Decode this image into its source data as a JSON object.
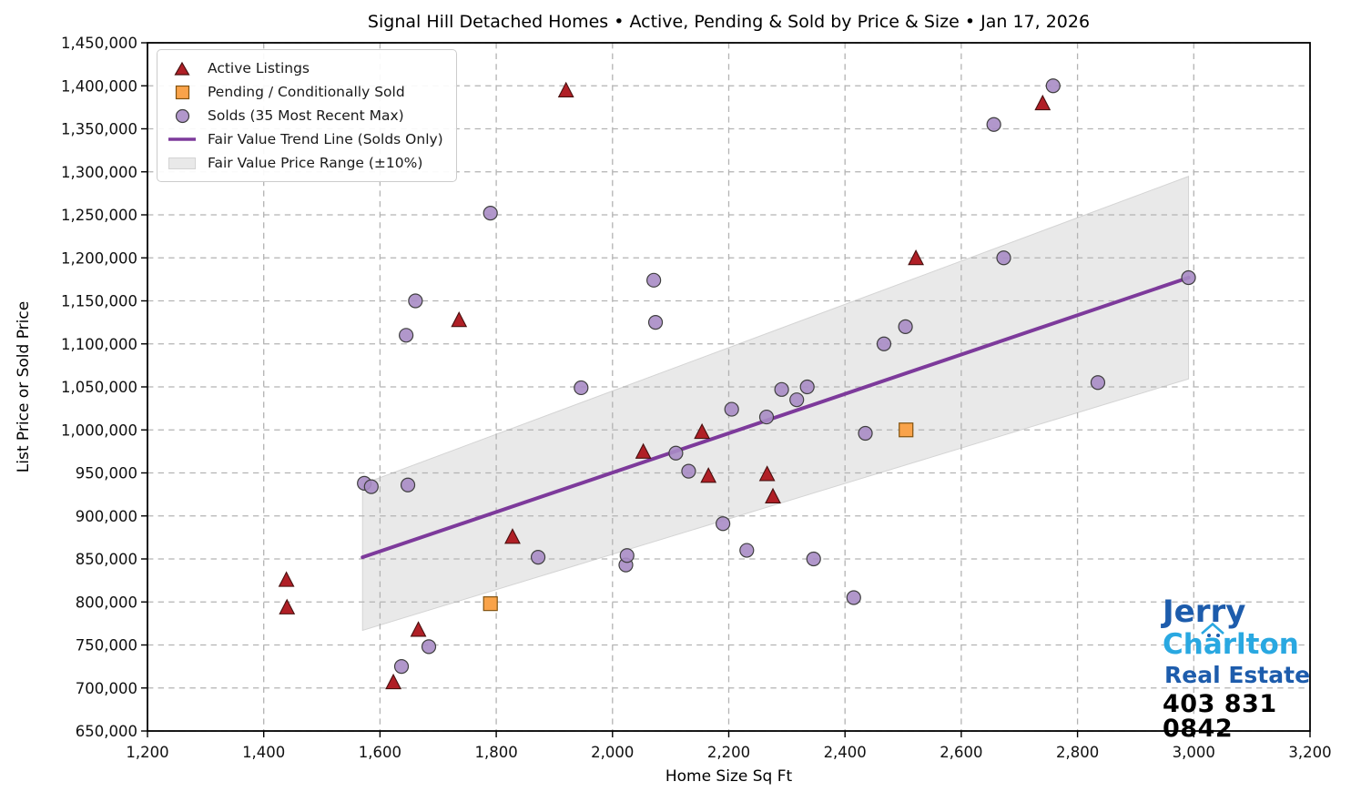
{
  "chart_data": {
    "type": "scatter",
    "title": "Signal Hill Detached Homes • Active, Pending & Sold by Price & Size • Jan 17, 2026",
    "xlabel": "Home Size Sq Ft",
    "ylabel": "List Price or Sold Price",
    "xlim": [
      1200,
      3200
    ],
    "ylim": [
      650000,
      1450000
    ],
    "grid": true,
    "legend_position": "upper left",
    "x_tick_values": [
      1200,
      1400,
      1600,
      1800,
      2000,
      2200,
      2400,
      2600,
      2800,
      3000,
      3200
    ],
    "x_tick_labels": [
      "1,200",
      "1,400",
      "1,600",
      "1,800",
      "2,000",
      "2,200",
      "2,400",
      "2,600",
      "2,800",
      "3,000",
      "3,200"
    ],
    "y_tick_values": [
      650000,
      700000,
      750000,
      800000,
      850000,
      900000,
      950000,
      1000000,
      1050000,
      1100000,
      1150000,
      1200000,
      1250000,
      1300000,
      1350000,
      1400000,
      1450000
    ],
    "y_tick_labels": [
      "650,000",
      "700,000",
      "750,000",
      "800,000",
      "850,000",
      "900,000",
      "950,000",
      "1,000,000",
      "1,050,000",
      "1,100,000",
      "1,150,000",
      "1,200,000",
      "1,250,000",
      "1,300,000",
      "1,350,000",
      "1,400,000",
      "1,450,000"
    ],
    "series": [
      {
        "name": "Active Listings",
        "marker": "triangle",
        "color": "#b01f26",
        "edge": "#47100f",
        "points": [
          [
            1439,
            825000
          ],
          [
            1440,
            793000
          ],
          [
            1623,
            706000
          ],
          [
            1666,
            767000
          ],
          [
            1736,
            1127000
          ],
          [
            1828,
            875000
          ],
          [
            1920,
            1394000
          ],
          [
            2053,
            974000
          ],
          [
            2154,
            997000
          ],
          [
            2165,
            946000
          ],
          [
            2266,
            948000
          ],
          [
            2276,
            922000
          ],
          [
            2522,
            1199000
          ],
          [
            2740,
            1379000
          ]
        ]
      },
      {
        "name": "Pending / Conditionally Sold",
        "marker": "square",
        "color": "#f9a34a",
        "edge": "#80520f",
        "points": [
          [
            1790,
            798000
          ],
          [
            2505,
            1000000
          ]
        ]
      },
      {
        "name": "Solds (35 Most Recent Max)",
        "marker": "circle",
        "color": "#a88cc5",
        "edge": "#3f3f3f",
        "points": [
          [
            1573,
            938000
          ],
          [
            1585,
            934000
          ],
          [
            1637,
            725000
          ],
          [
            1645,
            1110000
          ],
          [
            1648,
            936000
          ],
          [
            1661,
            1150000
          ],
          [
            1684,
            748000
          ],
          [
            1790,
            1252000
          ],
          [
            1872,
            852000
          ],
          [
            1946,
            1049000
          ],
          [
            2023,
            843000
          ],
          [
            2025,
            854000
          ],
          [
            2071,
            1174000
          ],
          [
            2074,
            1125000
          ],
          [
            2109,
            973000
          ],
          [
            2131,
            952000
          ],
          [
            2190,
            891000
          ],
          [
            2205,
            1024000
          ],
          [
            2231,
            860000
          ],
          [
            2265,
            1015000
          ],
          [
            2291,
            1047000
          ],
          [
            2317,
            1035000
          ],
          [
            2335,
            1050000
          ],
          [
            2346,
            850000
          ],
          [
            2415,
            805000
          ],
          [
            2435,
            996000
          ],
          [
            2467,
            1100000
          ],
          [
            2504,
            1120000
          ],
          [
            2656,
            1355000
          ],
          [
            2673,
            1200000
          ],
          [
            2758,
            1400000
          ],
          [
            2835,
            1055000
          ],
          [
            2991,
            1177000
          ]
        ]
      }
    ],
    "trend_line": {
      "name": "Fair Value Trend Line (Solds Only)",
      "color": "#7d3a9b",
      "points": [
        [
          1570,
          852000
        ],
        [
          2991,
          1177000
        ]
      ]
    },
    "band": {
      "name": "Fair Value Price Range (±10%)",
      "color": "#e9e9e9",
      "edge": "#d4d4d4",
      "polygon": [
        [
          1570,
          937000
        ],
        [
          2991,
          1294700
        ],
        [
          2991,
          1059300
        ],
        [
          1570,
          767000
        ]
      ]
    },
    "grid_color": "#b3b3b3",
    "spine_color": "#000000"
  },
  "logo": {
    "line1": "Jerry",
    "line2_pre": "Ch",
    "line2_a": "a",
    "line2_post": "rlton",
    "line3": "Real Estate",
    "phone": "403 831 0842",
    "blue_dark": "#1d5cac",
    "blue_light": "#29a8e1"
  }
}
